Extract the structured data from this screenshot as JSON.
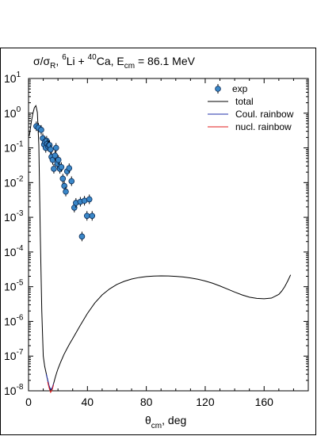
{
  "chart_data": {
    "type": "scatter",
    "title": {
      "ratio_sigma": "σ/σ",
      "ratio_sub": "R",
      "sep": ",  ",
      "proj_mass": "6",
      "proj": "Li + ",
      "targ_mass": "40",
      "targ": "Ca, E",
      "e_sub": "cm",
      "energy": " = 86.1 MeV"
    },
    "xlabel": {
      "main": "θ",
      "sub": "cm",
      "unit": ", deg"
    },
    "ylabel": "",
    "xlim": [
      0,
      190
    ],
    "ylim": [
      1e-08,
      10
    ],
    "yscale": "log",
    "x_ticks": [
      {
        "value": 0,
        "label": "0"
      },
      {
        "value": 40,
        "label": "40"
      },
      {
        "value": 80,
        "label": "80"
      },
      {
        "value": 120,
        "label": "120"
      },
      {
        "value": 160,
        "label": "160"
      }
    ],
    "y_ticks": [
      {
        "exp": 1,
        "base": "10",
        "sup": "1"
      },
      {
        "exp": 0,
        "base": "10",
        "sup": "0"
      },
      {
        "exp": -1,
        "base": "10",
        "sup": "-1"
      },
      {
        "exp": -2,
        "base": "10",
        "sup": "-2"
      },
      {
        "exp": -3,
        "base": "10",
        "sup": "-3"
      },
      {
        "exp": -4,
        "base": "10",
        "sup": "-4"
      },
      {
        "exp": -5,
        "base": "10",
        "sup": "-5"
      },
      {
        "exp": -6,
        "base": "10",
        "sup": "-6"
      },
      {
        "exp": -7,
        "base": "10",
        "sup": "-7"
      },
      {
        "exp": -8,
        "base": "10",
        "sup": "-8"
      }
    ],
    "legend": {
      "position": "top-right",
      "entries": [
        {
          "label": "exp",
          "kind": "marker",
          "color": "#3a87c8"
        },
        {
          "label": "total",
          "kind": "line",
          "color": "#000000"
        },
        {
          "label": "Coul. rainbow",
          "kind": "line",
          "color": "#1f2fa8"
        },
        {
          "label": "nucl. rainbow",
          "kind": "line",
          "color": "#e11c1c"
        }
      ]
    },
    "series": [
      {
        "name": "exp",
        "kind": "scatter",
        "color": "#3a87c8",
        "x": [
          5.3,
          6.7,
          8.6,
          9.7,
          10.6,
          11.2,
          11.7,
          12.3,
          12.7,
          13.3,
          13.8,
          14.3,
          15.0,
          15.6,
          16.4,
          17.2,
          18.0,
          18.7,
          19.6,
          20.3,
          21.3,
          22.3,
          23.3,
          24.3,
          25.3,
          26.2,
          27.6,
          29.2,
          31.1,
          32.2,
          35.2,
          36.3,
          38.0,
          39.7,
          41.3,
          43.2
        ],
        "y": [
          0.42,
          0.38,
          0.33,
          0.19,
          0.125,
          0.15,
          0.1,
          0.16,
          0.13,
          0.11,
          0.12,
          0.12,
          0.09,
          0.055,
          0.045,
          0.025,
          0.06,
          0.1,
          0.035,
          0.045,
          0.025,
          0.028,
          0.013,
          0.008,
          0.0055,
          0.021,
          0.026,
          0.011,
          0.0019,
          0.0026,
          0.0028,
          0.00028,
          0.003,
          0.0011,
          0.0033,
          0.0011
        ]
      },
      {
        "name": "total",
        "kind": "line",
        "color": "#000000",
        "x": [
          0.5,
          1,
          2,
          3,
          4,
          5,
          6,
          7,
          8,
          9,
          10,
          11,
          12,
          13,
          14,
          15,
          16,
          17,
          18,
          19,
          20,
          22,
          24,
          26,
          28,
          30,
          35,
          40,
          45,
          50,
          55,
          60,
          65,
          70,
          75,
          80,
          85,
          90,
          95,
          100,
          105,
          110,
          115,
          120,
          125,
          130,
          135,
          140,
          145,
          150,
          155,
          160,
          165,
          170,
          172,
          174,
          176,
          178
        ],
        "y": [
          0.22,
          0.3,
          0.6,
          1.0,
          1.45,
          1.65,
          1.05,
          0.12,
          0.0003,
          2e-06,
          1e-07,
          5e-08,
          3.2e-08,
          2e-08,
          1.3e-08,
          1.05e-08,
          1.15e-08,
          1.6e-08,
          2.3e-08,
          3.2e-08,
          4.3e-08,
          7e-08,
          1.1e-07,
          1.6e-07,
          2.3e-07,
          3.2e-07,
          7.5e-07,
          1.7e-06,
          3.4e-06,
          5.8e-06,
          8.6e-06,
          1.16e-05,
          1.43e-05,
          1.66e-05,
          1.84e-05,
          1.96e-05,
          2.02e-05,
          2.05e-05,
          2.04e-05,
          1.99e-05,
          1.91e-05,
          1.79e-05,
          1.64e-05,
          1.46e-05,
          1.26e-05,
          1.05e-05,
          8.6e-06,
          7e-06,
          5.8e-06,
          5e-06,
          4.6e-06,
          4.5e-06,
          4.7e-06,
          6e-06,
          7.5e-06,
          1e-05,
          1.45e-05,
          2.2e-05
        ]
      },
      {
        "name": "Coul. rainbow",
        "kind": "line",
        "color": "#1f2fa8",
        "x": [
          12,
          13,
          14,
          15,
          16,
          17
        ],
        "y": [
          3e-08,
          2.1e-08,
          1.4e-08,
          1.1e-08,
          1.2e-08,
          1.6e-08
        ]
      },
      {
        "name": "nucl. rainbow",
        "kind": "line",
        "color": "#e11c1c",
        "x": [
          13,
          14,
          15,
          16,
          17
        ],
        "y": [
          1.8e-08,
          1.2e-08,
          9e-09,
          1.05e-08,
          1.5e-08
        ]
      }
    ]
  }
}
